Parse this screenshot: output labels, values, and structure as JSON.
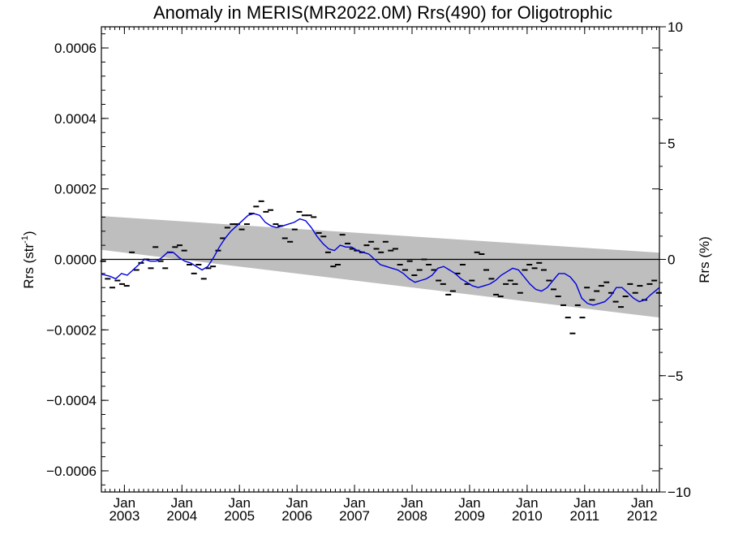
{
  "chart_data": {
    "type": "line",
    "title": "Anomaly in MERIS(MR2022.0M) Rrs(490) for Oligotrophic",
    "ylabel": "Rrs (str",
    "ylabel_superscript": "-1",
    "ylabel_suffix": ")",
    "y2label": "Rrs (%)",
    "xlim": [
      2002.6,
      2012.3
    ],
    "ylim": [
      -0.00066,
      0.00066
    ],
    "y2lim": [
      -10,
      10
    ],
    "x_ticks": [
      {
        "value": 2003.0,
        "month": "Jan",
        "year": "2003"
      },
      {
        "value": 2004.0,
        "month": "Jan",
        "year": "2004"
      },
      {
        "value": 2005.0,
        "month": "Jan",
        "year": "2005"
      },
      {
        "value": 2006.0,
        "month": "Jan",
        "year": "2006"
      },
      {
        "value": 2007.0,
        "month": "Jan",
        "year": "2007"
      },
      {
        "value": 2008.0,
        "month": "Jan",
        "year": "2008"
      },
      {
        "value": 2009.0,
        "month": "Jan",
        "year": "2009"
      },
      {
        "value": 2010.0,
        "month": "Jan",
        "year": "2010"
      },
      {
        "value": 2011.0,
        "month": "Jan",
        "year": "2011"
      },
      {
        "value": 2012.0,
        "month": "Jan",
        "year": "2012"
      }
    ],
    "y_ticks": [
      {
        "value": 0.0006,
        "label": "0.0006"
      },
      {
        "value": 0.0004,
        "label": "0.0004"
      },
      {
        "value": 0.0002,
        "label": "0.0002"
      },
      {
        "value": 0.0,
        "label": "0.0000"
      },
      {
        "value": -0.0002,
        "label": "−0.0002"
      },
      {
        "value": -0.0004,
        "label": "−0.0004"
      },
      {
        "value": -0.0006,
        "label": "−0.0006"
      }
    ],
    "y2_ticks": [
      {
        "value": 10,
        "label": "10"
      },
      {
        "value": 5,
        "label": "5"
      },
      {
        "value": 0,
        "label": "0"
      },
      {
        "value": -5,
        "label": "−5"
      },
      {
        "value": -10,
        "label": "−10"
      }
    ],
    "zero_line": 0.0,
    "confidence_band": {
      "x": [
        2002.6,
        2012.3
      ],
      "upper": [
        0.000123,
        1.9e-05
      ],
      "lower": [
        2.7e-05,
        -0.000165
      ],
      "color": "#bebebe"
    },
    "monthly_points": {
      "color": "#000000",
      "x": [
        2002.63,
        2002.71,
        2002.79,
        2002.88,
        2002.96,
        2003.04,
        2003.13,
        2003.21,
        2003.29,
        2003.38,
        2003.46,
        2003.54,
        2003.63,
        2003.71,
        2003.79,
        2003.88,
        2003.96,
        2004.04,
        2004.13,
        2004.21,
        2004.29,
        2004.38,
        2004.46,
        2004.54,
        2004.63,
        2004.71,
        2004.79,
        2004.88,
        2004.96,
        2005.04,
        2005.13,
        2005.21,
        2005.29,
        2005.38,
        2005.46,
        2005.54,
        2005.63,
        2005.71,
        2005.79,
        2005.88,
        2005.96,
        2006.04,
        2006.13,
        2006.21,
        2006.29,
        2006.38,
        2006.46,
        2006.54,
        2006.63,
        2006.71,
        2006.79,
        2006.88,
        2006.96,
        2007.04,
        2007.13,
        2007.21,
        2007.29,
        2007.38,
        2007.46,
        2007.54,
        2007.63,
        2007.71,
        2007.79,
        2007.88,
        2007.96,
        2008.04,
        2008.13,
        2008.21,
        2008.29,
        2008.38,
        2008.46,
        2008.54,
        2008.63,
        2008.71,
        2008.79,
        2008.88,
        2008.96,
        2009.04,
        2009.13,
        2009.21,
        2009.29,
        2009.38,
        2009.46,
        2009.54,
        2009.63,
        2009.71,
        2009.79,
        2009.88,
        2009.96,
        2010.04,
        2010.13,
        2010.21,
        2010.29,
        2010.38,
        2010.46,
        2010.54,
        2010.63,
        2010.71,
        2010.79,
        2010.88,
        2010.96,
        2011.04,
        2011.13,
        2011.21,
        2011.29,
        2011.38,
        2011.46,
        2011.54,
        2011.63,
        2011.71,
        2011.79,
        2011.88,
        2011.96,
        2012.04,
        2012.13,
        2012.21,
        2012.29
      ],
      "y": [
        -5e-06,
        -5.5e-05,
        -8e-05,
        -6e-05,
        -7e-05,
        -7.5e-05,
        2e-05,
        -3e-05,
        -1e-05,
        0.0,
        -2.5e-05,
        3.5e-05,
        -5e-06,
        -2.5e-05,
        2e-05,
        3.5e-05,
        4e-05,
        2.5e-05,
        -1.5e-05,
        -4e-05,
        -1.5e-05,
        -5.5e-05,
        -2.5e-05,
        -2e-05,
        2.5e-05,
        6e-05,
        9e-05,
        0.0001,
        0.0001,
        8.5e-05,
        0.0001,
        0.00013,
        0.00015,
        0.000165,
        0.000135,
        0.00014,
        0.0001,
        9.5e-05,
        6e-05,
        5e-05,
        8.5e-05,
        0.000135,
        0.000125,
        0.000125,
        0.00012,
        7.5e-05,
        6.5e-05,
        2e-05,
        -2e-05,
        -1.5e-05,
        7e-05,
        4.5e-05,
        3e-05,
        2.5e-05,
        2e-05,
        4e-05,
        5e-05,
        3e-05,
        2e-05,
        5e-05,
        2.5e-05,
        3e-05,
        -1.5e-05,
        -3e-05,
        -5e-06,
        -4.5e-05,
        -3e-05,
        0.0,
        -1.5e-05,
        -3e-05,
        -6e-05,
        -7e-05,
        -0.0001,
        -9e-05,
        -4e-05,
        -1.5e-05,
        -7e-05,
        -6e-05,
        2e-05,
        1.5e-05,
        -3e-05,
        -5.5e-05,
        -0.0001,
        -0.000105,
        -7e-05,
        -6e-05,
        -7e-05,
        -9.5e-05,
        -3e-05,
        -1.5e-05,
        -2.5e-05,
        -1e-05,
        -3e-05,
        -6e-05,
        -8.5e-05,
        -0.000105,
        -0.00013,
        -0.000165,
        -0.00021,
        -0.00013,
        -0.000165,
        -8e-05,
        -0.000115,
        -9e-05,
        -7.5e-05,
        -6.5e-05,
        -9.5e-05,
        -0.00012,
        -0.000135,
        -0.000105,
        -7e-05,
        -9.5e-05,
        -7.5e-05,
        -0.000115,
        -7e-05,
        -6e-05,
        -9.5e-05
      ]
    },
    "series": [
      {
        "color": "#0000dd",
        "x": [
          2002.6,
          2002.75,
          2002.85,
          2002.95,
          2003.05,
          2003.15,
          2003.25,
          2003.35,
          2003.45,
          2003.55,
          2003.65,
          2003.75,
          2003.85,
          2003.95,
          2004.05,
          2004.15,
          2004.25,
          2004.35,
          2004.45,
          2004.55,
          2004.65,
          2004.75,
          2004.85,
          2004.95,
          2005.05,
          2005.15,
          2005.25,
          2005.35,
          2005.45,
          2005.55,
          2005.65,
          2005.75,
          2005.85,
          2005.95,
          2006.05,
          2006.15,
          2006.25,
          2006.35,
          2006.45,
          2006.55,
          2006.65,
          2006.75,
          2006.85,
          2006.95,
          2007.05,
          2007.15,
          2007.25,
          2007.35,
          2007.45,
          2007.55,
          2007.65,
          2007.75,
          2007.85,
          2007.95,
          2008.05,
          2008.15,
          2008.25,
          2008.35,
          2008.45,
          2008.55,
          2008.65,
          2008.75,
          2008.85,
          2008.95,
          2009.05,
          2009.15,
          2009.25,
          2009.35,
          2009.45,
          2009.55,
          2009.65,
          2009.75,
          2009.85,
          2009.95,
          2010.05,
          2010.15,
          2010.25,
          2010.35,
          2010.45,
          2010.55,
          2010.65,
          2010.75,
          2010.85,
          2010.95,
          2011.05,
          2011.15,
          2011.25,
          2011.35,
          2011.45,
          2011.55,
          2011.65,
          2011.75,
          2011.85,
          2011.95,
          2012.05,
          2012.15,
          2012.3
        ],
        "y": [
          -4.2e-05,
          -4.8e-05,
          -5.5e-05,
          -4e-05,
          -4.5e-05,
          -3e-05,
          -1.5e-05,
          0.0,
          -5e-06,
          -5e-06,
          5e-06,
          2e-05,
          2e-05,
          5e-06,
          -5e-06,
          -1e-05,
          -2e-05,
          -3e-05,
          -2e-05,
          5e-06,
          3.5e-05,
          6e-05,
          8e-05,
          9.5e-05,
          0.00011,
          0.000125,
          0.00013,
          0.000125,
          0.000105,
          9.5e-05,
          9e-05,
          9.5e-05,
          0.0001,
          0.000105,
          0.000115,
          0.00011,
          9e-05,
          6.5e-05,
          4.5e-05,
          3e-05,
          2.5e-05,
          4e-05,
          3.5e-05,
          3.5e-05,
          2.5e-05,
          2e-05,
          1.5e-05,
          0.0,
          -1.5e-05,
          -2e-05,
          -2.5e-05,
          -3e-05,
          -4e-05,
          -5.5e-05,
          -6.5e-05,
          -6e-05,
          -5.5e-05,
          -4.5e-05,
          -2.5e-05,
          -2e-05,
          -3e-05,
          -4e-05,
          -5.5e-05,
          -6.5e-05,
          -7.5e-05,
          -8e-05,
          -7.5e-05,
          -7e-05,
          -6e-05,
          -4.5e-05,
          -3.5e-05,
          -2.5e-05,
          -3e-05,
          -5e-05,
          -7e-05,
          -8.5e-05,
          -9e-05,
          -8e-05,
          -6e-05,
          -4e-05,
          -4e-05,
          -5e-05,
          -7e-05,
          -0.00011,
          -0.000125,
          -0.00013,
          -0.000125,
          -0.00012,
          -0.000105,
          -8e-05,
          -8e-05,
          -9.5e-05,
          -0.00011,
          -0.00012,
          -0.000115,
          -0.0001,
          -8e-05
        ]
      }
    ]
  }
}
